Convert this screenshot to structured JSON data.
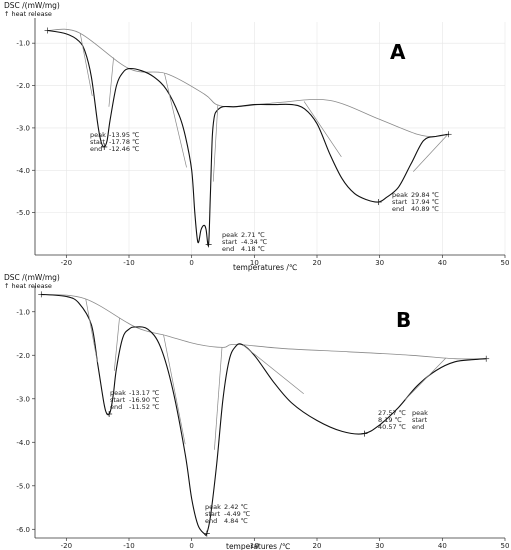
{
  "chart_data": [
    {
      "type": "line",
      "panel_label": "A",
      "ylabel": "DSC /(mW/mg)",
      "ylabel_sub": "↑ heat release",
      "xlabel": "temperatures /℃",
      "xlim": [
        -25,
        50
      ],
      "ylim": [
        -6.0,
        -0.5
      ],
      "x_ticks": [
        -20,
        -10,
        0,
        10,
        20,
        30,
        40,
        50
      ],
      "x_tick_labels": [
        "-20",
        "-10",
        "0",
        "10",
        "20",
        "30",
        "40",
        "50"
      ],
      "y_ticks": [
        -1.0,
        -2.0,
        -3.0,
        -4.0,
        -5.0
      ],
      "y_tick_labels": [
        "-1.0",
        "-2.0",
        "-3.0",
        "-4.0",
        "-5.0"
      ],
      "grid": true,
      "series": [
        {
          "role": "measured",
          "color": "#111111",
          "x": [
            -23,
            -20,
            -18,
            -17,
            -16,
            -15,
            -14.5,
            -14,
            -13.5,
            -13,
            -12,
            -11,
            -10,
            -8,
            -6,
            -4,
            -2,
            -1,
            0,
            0.5,
            1,
            1.5,
            2,
            2.3,
            2.7,
            3,
            3.3,
            3.6,
            4,
            5,
            7,
            10,
            13,
            16,
            18,
            20,
            22,
            24,
            26,
            28,
            29.8,
            31,
            33,
            35,
            37,
            39,
            41
          ],
          "y": [
            -0.7,
            -0.78,
            -0.95,
            -1.2,
            -1.8,
            -2.9,
            -3.3,
            -3.45,
            -3.3,
            -2.8,
            -2.0,
            -1.7,
            -1.6,
            -1.65,
            -1.8,
            -2.1,
            -2.7,
            -3.2,
            -4.0,
            -5.0,
            -5.7,
            -5.4,
            -5.3,
            -5.4,
            -5.75,
            -4.5,
            -3.2,
            -2.75,
            -2.6,
            -2.5,
            -2.5,
            -2.45,
            -2.45,
            -2.45,
            -2.55,
            -2.9,
            -3.6,
            -4.2,
            -4.55,
            -4.7,
            -4.75,
            -4.65,
            -4.4,
            -3.85,
            -3.3,
            -3.2,
            -3.15
          ]
        },
        {
          "role": "baseline",
          "color": "#8a8a8a",
          "x": [
            -23,
            -18,
            -10,
            -4,
            2,
            4,
            7,
            14,
            22,
            30,
            36,
            39,
            41
          ],
          "y": [
            -0.7,
            -0.75,
            -1.6,
            -1.72,
            -2.2,
            -2.45,
            -2.5,
            -2.4,
            -2.35,
            -2.8,
            -3.15,
            -3.2,
            -3.15
          ]
        }
      ],
      "peaks": [
        {
          "label": "-13.95 ℃",
          "peak": -13.95,
          "start": -17.78,
          "end": -12.46,
          "value_strings": [
            "-13.95 ℃",
            "-17.78 ℃",
            "-12.46 ℃"
          ],
          "text_labels": [
            "peak",
            "start",
            "end"
          ],
          "y_at_peak": -3.45
        },
        {
          "peak": 2.71,
          "start": -4.34,
          "end": 4.18,
          "value_strings": [
            "2.71 ℃",
            "-4.34 ℃",
            "4.18 ℃"
          ],
          "text_labels": [
            "peak",
            "start",
            "end"
          ],
          "y_at_peak": -5.75
        },
        {
          "peak": 29.84,
          "start": 17.94,
          "end": 40.89,
          "value_strings": [
            "29.84 ℃",
            "17.94 ℃",
            "40.89 ℃"
          ],
          "text_labels": [
            "peak",
            "start",
            "end"
          ],
          "y_at_peak": -4.75
        }
      ]
    },
    {
      "type": "line",
      "panel_label": "B",
      "ylabel": "DSC /(mW/mg)",
      "ylabel_sub": "↑ heat release",
      "xlabel": "temperatures /℃",
      "xlim": [
        -25,
        50
      ],
      "ylim": [
        -6.2,
        -0.5
      ],
      "x_ticks": [
        -20,
        -10,
        0,
        10,
        20,
        30,
        40,
        50
      ],
      "x_tick_labels": [
        "-20",
        "-10",
        "0",
        "10",
        "20",
        "30",
        "40",
        "50"
      ],
      "y_ticks": [
        -1.0,
        -2.0,
        -3.0,
        -4.0,
        -5.0,
        -6.0
      ],
      "y_tick_labels": [
        "-1.0",
        "-2.0",
        "-3.0",
        "-4.0",
        "-5.0",
        "-6.0"
      ],
      "grid": false,
      "series": [
        {
          "role": "measured",
          "color": "#111111",
          "x": [
            -24,
            -20,
            -18,
            -16,
            -15,
            -14,
            -13.5,
            -13,
            -12.5,
            -12,
            -11,
            -10,
            -9,
            -7,
            -5,
            -3,
            -1,
            0,
            1,
            2,
            2.4,
            3,
            4,
            5,
            6,
            7,
            8,
            10,
            13,
            16,
            20,
            24,
            27.5,
            30,
            33,
            36,
            39,
            42,
            45,
            47
          ],
          "y": [
            -0.6,
            -0.65,
            -0.8,
            -1.3,
            -2.2,
            -3.1,
            -3.35,
            -3.3,
            -2.9,
            -2.3,
            -1.6,
            -1.4,
            -1.35,
            -1.4,
            -1.8,
            -2.8,
            -4.3,
            -5.3,
            -5.9,
            -6.1,
            -6.1,
            -5.7,
            -4.5,
            -3.0,
            -2.1,
            -1.8,
            -1.75,
            -2.0,
            -2.6,
            -3.1,
            -3.5,
            -3.75,
            -3.8,
            -3.6,
            -3.2,
            -2.7,
            -2.35,
            -2.15,
            -2.1,
            -2.08
          ]
        },
        {
          "role": "baseline",
          "color": "#8a8a8a",
          "x": [
            -24,
            -17,
            -9,
            -4,
            1,
            5,
            7,
            15,
            25,
            35,
            42,
            47
          ],
          "y": [
            -0.6,
            -0.7,
            -1.35,
            -1.55,
            -1.75,
            -1.82,
            -1.75,
            -1.85,
            -1.92,
            -2.0,
            -2.08,
            -2.08
          ]
        }
      ],
      "peaks": [
        {
          "peak": -13.17,
          "start": -16.9,
          "end": -11.52,
          "value_strings": [
            "-13.17 ℃",
            "-16.90 ℃",
            "-11.52 ℃"
          ],
          "text_labels": [
            "peak",
            "start",
            "end"
          ],
          "y_at_peak": -3.35
        },
        {
          "peak": 2.42,
          "start": -4.49,
          "end": 4.84,
          "value_strings": [
            "2.42 ℃",
            "-4.49 ℃",
            "4.84 ℃"
          ],
          "text_labels": [
            "peak",
            "start",
            "end"
          ],
          "y_at_peak": -6.1
        },
        {
          "peak": 27.57,
          "start": 8.19,
          "end": 40.57,
          "value_strings": [
            "27.57 ℃",
            "8.19 ℃",
            "40.57 ℃"
          ],
          "text_labels": [
            "peak",
            "start",
            "end"
          ],
          "y_at_peak": -3.8
        }
      ]
    }
  ]
}
